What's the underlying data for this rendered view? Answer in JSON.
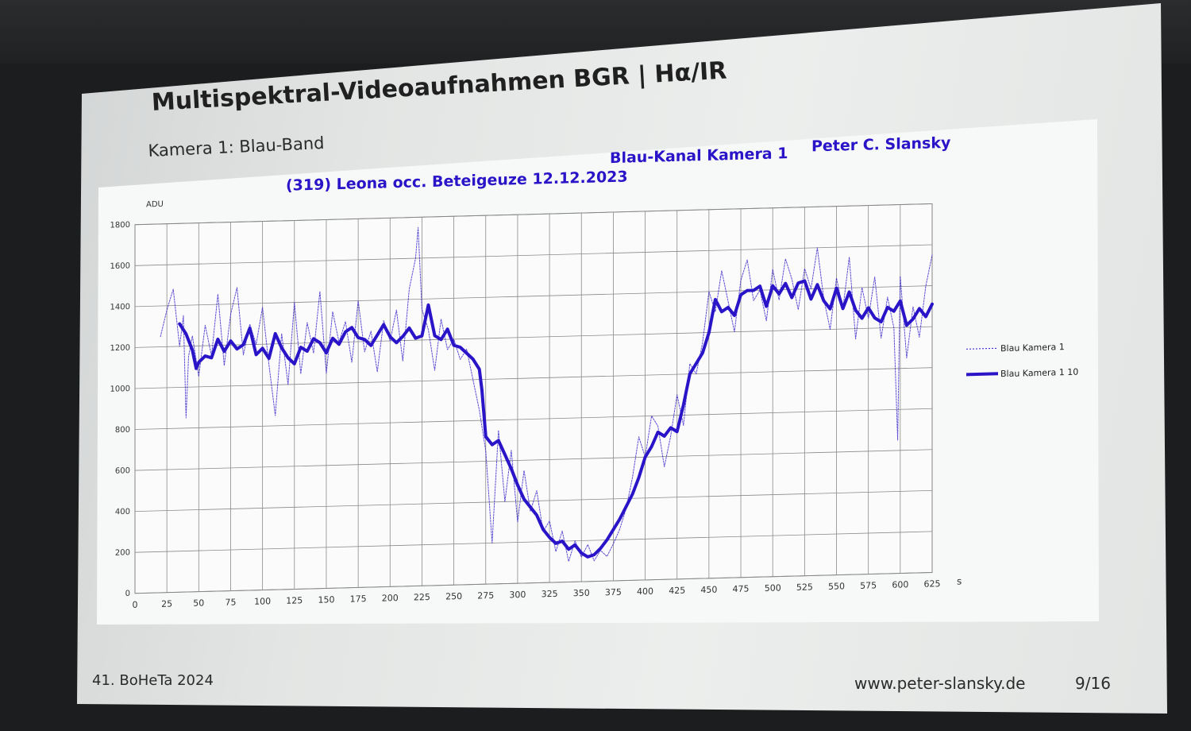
{
  "slide": {
    "title": "Multispektral-Videoaufnahmen BGR | Hα/IR",
    "subtitle": "Kamera 1: Blau-Band",
    "footer_left": "41. BoHeTa 2024",
    "footer_url": "www.peter-slansky.de",
    "footer_page": "9/16"
  },
  "chart_data": {
    "type": "line",
    "title": "(319) Leona occ. Beteigeuze 12.12.2023",
    "subtitle": "Blau-Kanal Kamera 1",
    "author": "Peter C. Slansky",
    "ylabel": "ADU",
    "xlabel": "s",
    "xlim": [
      0,
      625
    ],
    "ylim": [
      0,
      1800
    ],
    "x_ticks": [
      "0",
      "25",
      "50",
      "75",
      "100",
      "125",
      "150",
      "175",
      "200",
      "225",
      "250",
      "275",
      "300",
      "325",
      "350",
      "375",
      "400",
      "425",
      "450",
      "475",
      "500",
      "525",
      "550",
      "575",
      "600",
      "625"
    ],
    "y_ticks": [
      "0",
      "200",
      "400",
      "600",
      "800",
      "1000",
      "1200",
      "1400",
      "1600",
      "1800"
    ],
    "grid": true,
    "legend_position": "right",
    "accent_color": "#2a14c8",
    "series": [
      {
        "name": "Blau Kamera 1",
        "style": "dotted-thin",
        "x": [
          20,
          25,
          30,
          35,
          38,
          40,
          42,
          45,
          50,
          55,
          60,
          65,
          70,
          75,
          80,
          85,
          90,
          95,
          100,
          105,
          110,
          115,
          120,
          125,
          130,
          135,
          140,
          145,
          150,
          155,
          160,
          165,
          170,
          175,
          180,
          185,
          190,
          195,
          200,
          205,
          210,
          215,
          220,
          222,
          225,
          230,
          235,
          240,
          245,
          250,
          255,
          260,
          265,
          270,
          275,
          280,
          285,
          290,
          295,
          300,
          305,
          310,
          315,
          320,
          325,
          330,
          335,
          340,
          345,
          350,
          355,
          360,
          365,
          370,
          375,
          380,
          385,
          390,
          395,
          400,
          405,
          410,
          415,
          420,
          425,
          430,
          435,
          440,
          445,
          450,
          455,
          460,
          465,
          470,
          475,
          480,
          485,
          490,
          495,
          500,
          505,
          510,
          515,
          520,
          525,
          530,
          535,
          540,
          545,
          550,
          555,
          560,
          565,
          570,
          575,
          580,
          585,
          590,
          595,
          598,
          600,
          605,
          610,
          615,
          620,
          625
        ],
        "y": [
          1250,
          1380,
          1480,
          1200,
          1350,
          850,
          1150,
          1250,
          1050,
          1300,
          1150,
          1450,
          1100,
          1350,
          1480,
          1150,
          1300,
          1200,
          1380,
          1100,
          850,
          1250,
          1000,
          1400,
          1050,
          1300,
          1150,
          1450,
          1050,
          1350,
          1200,
          1300,
          1100,
          1400,
          1150,
          1250,
          1050,
          1300,
          1200,
          1350,
          1100,
          1450,
          1600,
          1750,
          1350,
          1250,
          1050,
          1300,
          1150,
          1200,
          1100,
          1150,
          1000,
          850,
          650,
          200,
          750,
          400,
          650,
          300,
          550,
          350,
          450,
          250,
          300,
          150,
          250,
          100,
          200,
          120,
          180,
          100,
          150,
          120,
          180,
          250,
          350,
          500,
          700,
          600,
          800,
          750,
          550,
          700,
          900,
          750,
          1050,
          1000,
          1150,
          1400,
          1300,
          1500,
          1350,
          1200,
          1450,
          1550,
          1350,
          1400,
          1250,
          1500,
          1350,
          1550,
          1450,
          1300,
          1500,
          1400,
          1600,
          1350,
          1200,
          1450,
          1300,
          1550,
          1150,
          1400,
          1250,
          1450,
          1150,
          1350,
          1200,
          650,
          1450,
          1050,
          1300,
          1150,
          1400,
          1550
        ]
      },
      {
        "name": "Blau Kamera 1 10",
        "style": "solid-thick",
        "x": [
          35,
          40,
          45,
          48,
          50,
          55,
          60,
          65,
          70,
          75,
          80,
          85,
          90,
          95,
          100,
          105,
          110,
          115,
          120,
          125,
          130,
          135,
          140,
          145,
          150,
          155,
          160,
          165,
          170,
          175,
          180,
          185,
          190,
          195,
          200,
          205,
          210,
          215,
          220,
          225,
          230,
          235,
          240,
          245,
          250,
          255,
          260,
          265,
          270,
          272,
          275,
          280,
          285,
          290,
          295,
          300,
          305,
          310,
          315,
          320,
          325,
          330,
          335,
          340,
          345,
          350,
          355,
          360,
          365,
          370,
          375,
          380,
          385,
          390,
          395,
          400,
          405,
          410,
          415,
          420,
          425,
          430,
          435,
          440,
          445,
          450,
          455,
          460,
          465,
          470,
          475,
          480,
          485,
          490,
          495,
          500,
          505,
          510,
          515,
          520,
          525,
          530,
          535,
          540,
          545,
          550,
          555,
          560,
          565,
          570,
          575,
          580,
          585,
          590,
          595,
          600,
          605,
          610,
          615,
          620,
          625
        ],
        "y": [
          1310,
          1260,
          1180,
          1090,
          1120,
          1150,
          1140,
          1230,
          1170,
          1220,
          1180,
          1200,
          1280,
          1150,
          1180,
          1130,
          1250,
          1180,
          1130,
          1100,
          1180,
          1160,
          1220,
          1200,
          1150,
          1220,
          1190,
          1250,
          1270,
          1220,
          1210,
          1180,
          1230,
          1280,
          1220,
          1190,
          1220,
          1260,
          1210,
          1220,
          1370,
          1220,
          1200,
          1250,
          1170,
          1160,
          1130,
          1100,
          1050,
          950,
          720,
          680,
          700,
          630,
          560,
          480,
          410,
          370,
          330,
          260,
          220,
          190,
          200,
          160,
          180,
          140,
          120,
          130,
          160,
          200,
          250,
          300,
          360,
          420,
          500,
          600,
          650,
          720,
          700,
          740,
          720,
          850,
          1000,
          1050,
          1100,
          1200,
          1360,
          1300,
          1320,
          1280,
          1380,
          1400,
          1400,
          1420,
          1320,
          1420,
          1380,
          1430,
          1360,
          1430,
          1440,
          1350,
          1420,
          1340,
          1300,
          1400,
          1300,
          1380,
          1290,
          1250,
          1300,
          1250,
          1230,
          1300,
          1280,
          1330,
          1210,
          1240,
          1290,
          1250,
          1310
        ]
      }
    ]
  }
}
